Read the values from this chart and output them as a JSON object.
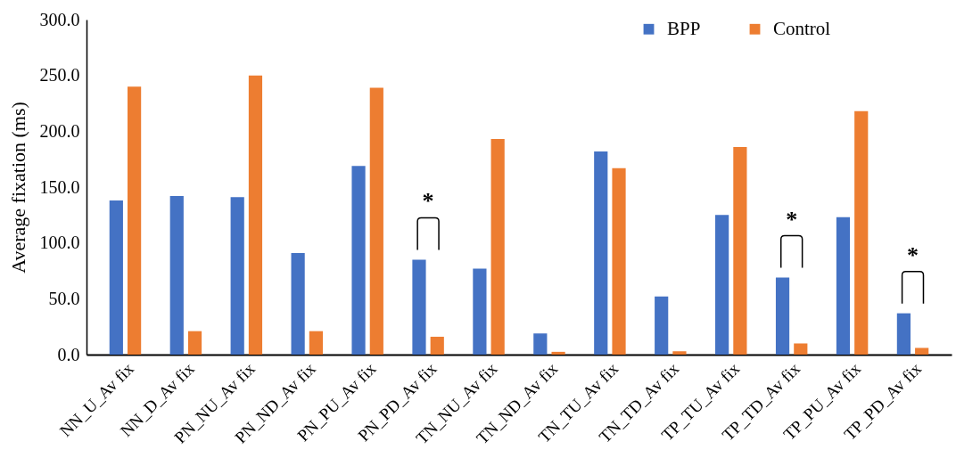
{
  "chart_data": {
    "type": "bar",
    "ylabel": "Average fixation (ms)",
    "categories": [
      "NN_U_Av fix",
      "NN_D_Av fix",
      "PN_NU_Av fix",
      "PN_ND_Av fix",
      "PN_PU_Av fix",
      "PN_PD_Av fix",
      "TN_NU_Av fix",
      "TN_ND_Av fix",
      "TN_TU_Av fix",
      "TN_TD_Av fix",
      "TP_TU_Av fix",
      "TP_TD_Av fix",
      "TP_PU_Av fix",
      "TP_PD_Av fix"
    ],
    "series": [
      {
        "name": "BPP",
        "color": "#4472c4",
        "values": [
          138,
          142,
          141,
          91,
          169,
          85,
          77,
          19,
          182,
          52,
          125,
          69,
          123,
          37
        ]
      },
      {
        "name": "Control",
        "color": "#ed7d31",
        "values": [
          240,
          21,
          250,
          21,
          239,
          16,
          193,
          2.5,
          167,
          3,
          186,
          10,
          218,
          6
        ]
      }
    ],
    "ylim": [
      0,
      300
    ],
    "yticks": [
      {
        "value": 0,
        "label": "0.0"
      },
      {
        "value": 50,
        "label": "50.0"
      },
      {
        "value": 100,
        "label": "100.0"
      },
      {
        "value": 150,
        "label": "150.0"
      },
      {
        "value": 200,
        "label": "200.0"
      },
      {
        "value": 250,
        "label": "250.0"
      },
      {
        "value": 300,
        "label": "300.0"
      }
    ],
    "annotations": [
      "*",
      "*",
      "*"
    ],
    "grid": false,
    "legend": "top right"
  }
}
